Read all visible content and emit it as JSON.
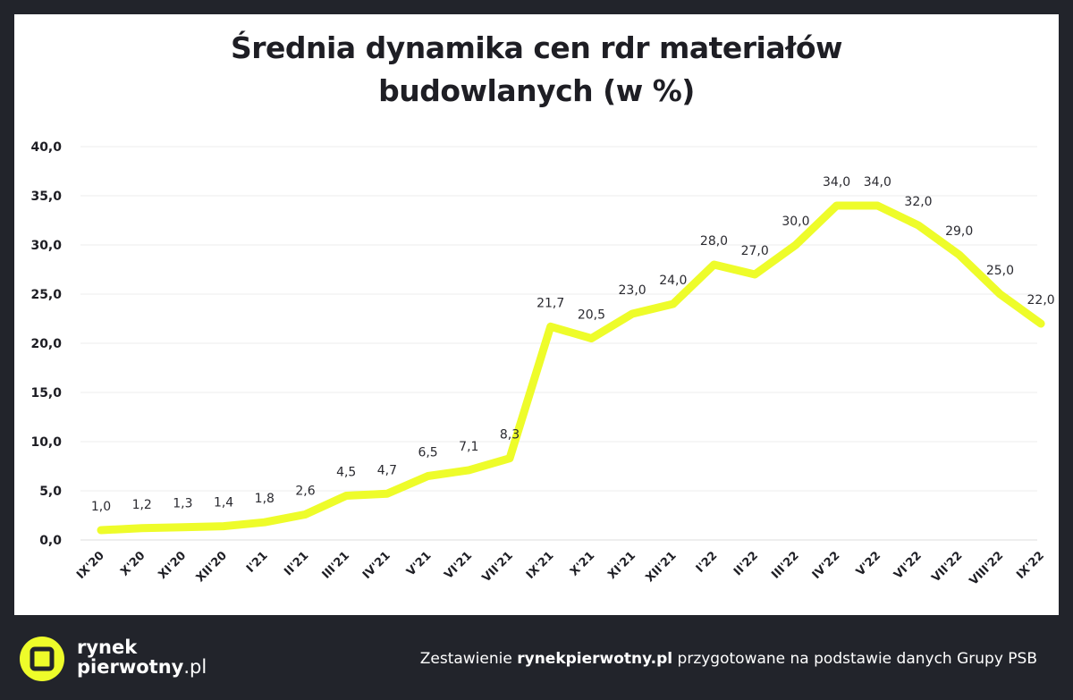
{
  "title_line1": "Średnia dynamika cen rdr materiałów",
  "title_line2": "budowlanych (w %)",
  "colors": {
    "line": "#eefc2a",
    "background": "#22242b",
    "panel": "#ffffff",
    "text": "#1e1e24",
    "grid": "#ececec"
  },
  "chart_data": {
    "type": "line",
    "title": "Średnia dynamika cen rdr materiałów budowlanych (w %)",
    "categories": [
      "IX'20",
      "X'20",
      "XI'20",
      "XII'20",
      "I'21",
      "II'21",
      "III'21",
      "IV'21",
      "V'21",
      "VI'21",
      "VII'21",
      "IX'21",
      "X'21",
      "XI'21",
      "XII'21",
      "I'22",
      "II'22",
      "III'22",
      "IV'22",
      "V'22",
      "VI'22",
      "VII'22",
      "VIII'22",
      "IX'22"
    ],
    "values": [
      1.0,
      1.2,
      1.3,
      1.4,
      1.8,
      2.6,
      4.5,
      4.7,
      6.5,
      7.1,
      8.3,
      21.7,
      20.5,
      23.0,
      24.0,
      28.0,
      27.0,
      30.0,
      34.0,
      34.0,
      32.0,
      29.0,
      25.0,
      22.0
    ],
    "value_labels": [
      "1,0",
      "1,2",
      "1,3",
      "1,4",
      "1,8",
      "2,6",
      "4,5",
      "4,7",
      "6,5",
      "7,1",
      "8,3",
      "21,7",
      "20,5",
      "23,0",
      "24,0",
      "28,0",
      "27,0",
      "30,0",
      "34,0",
      "34,0",
      "32,0",
      "29,0",
      "25,0",
      "22,0"
    ],
    "yticks": [
      "0,0",
      "5,0",
      "10,0",
      "15,0",
      "20,0",
      "25,0",
      "30,0",
      "35,0",
      "40,0"
    ],
    "ylim": [
      0,
      40
    ],
    "grid": true,
    "legend": "none"
  },
  "footer": {
    "brand_line1": "rynek",
    "brand_line2": "pierwotny",
    "brand_suffix": ".pl",
    "credit_before": "Zestawienie ",
    "credit_bold": "rynekpierwotny.pl",
    "credit_after": " przygotowane na podstawie danych Grupy PSB"
  }
}
